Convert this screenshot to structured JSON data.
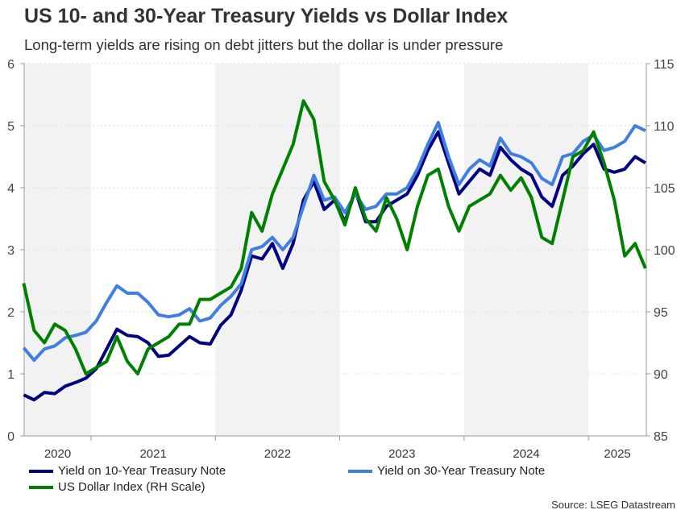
{
  "chart_data": {
    "type": "line",
    "title": "US 10- and 30-Year Treasury Yields vs Dollar Index",
    "subtitle": "Long-term yields are rising on debt jitters but the dollar is under pressure",
    "source": "Source: LSEG Datastream",
    "x_tick_labels": [
      "2020",
      "2021",
      "2022",
      "2023",
      "2024",
      "2025"
    ],
    "shaded_years": [
      "2020",
      "2022",
      "2024"
    ],
    "y_left": {
      "range": [
        0,
        6
      ],
      "ticks": [
        0,
        1,
        2,
        3,
        4,
        5,
        6
      ]
    },
    "y_right": {
      "range": [
        85,
        115
      ],
      "ticks": [
        85,
        90,
        95,
        100,
        105,
        110,
        115
      ]
    },
    "grid": "horizontal dotted",
    "legend_placement": "bottom",
    "x": [
      "2020-06",
      "2020-07",
      "2020-08",
      "2020-09",
      "2020-10",
      "2020-11",
      "2020-12",
      "2021-01",
      "2021-02",
      "2021-03",
      "2021-04",
      "2021-05",
      "2021-06",
      "2021-07",
      "2021-08",
      "2021-09",
      "2021-10",
      "2021-11",
      "2021-12",
      "2022-01",
      "2022-02",
      "2022-03",
      "2022-04",
      "2022-05",
      "2022-06",
      "2022-07",
      "2022-08",
      "2022-09",
      "2022-10",
      "2022-11",
      "2022-12",
      "2023-01",
      "2023-02",
      "2023-03",
      "2023-04",
      "2023-05",
      "2023-06",
      "2023-07",
      "2023-08",
      "2023-09",
      "2023-10",
      "2023-11",
      "2023-12",
      "2024-01",
      "2024-02",
      "2024-03",
      "2024-04",
      "2024-05",
      "2024-06",
      "2024-07",
      "2024-08",
      "2024-09",
      "2024-10",
      "2024-11",
      "2024-12",
      "2025-01",
      "2025-02",
      "2025-03",
      "2025-04",
      "2025-05",
      "2025-06"
    ],
    "series": [
      {
        "name": "Yield on 10-Year Treasury Note",
        "axis": "left",
        "color": "#000080",
        "values": [
          0.66,
          0.58,
          0.7,
          0.68,
          0.8,
          0.86,
          0.93,
          1.08,
          1.4,
          1.72,
          1.62,
          1.6,
          1.5,
          1.28,
          1.3,
          1.45,
          1.6,
          1.5,
          1.48,
          1.78,
          1.95,
          2.35,
          2.9,
          2.85,
          3.1,
          2.7,
          3.1,
          3.8,
          4.1,
          3.65,
          3.8,
          3.45,
          3.95,
          3.45,
          3.45,
          3.7,
          3.8,
          3.9,
          4.2,
          4.6,
          4.9,
          4.4,
          3.9,
          4.1,
          4.3,
          4.2,
          4.65,
          4.45,
          4.3,
          4.2,
          3.85,
          3.7,
          4.2,
          4.35,
          4.55,
          4.7,
          4.3,
          4.25,
          4.3,
          4.5,
          4.4
        ]
      },
      {
        "name": "Yield on 30-Year Treasury Note",
        "axis": "left",
        "color": "#3f7fe0",
        "values": [
          1.42,
          1.22,
          1.4,
          1.45,
          1.58,
          1.62,
          1.67,
          1.85,
          2.15,
          2.42,
          2.3,
          2.3,
          2.15,
          1.95,
          1.92,
          1.95,
          2.05,
          1.85,
          1.9,
          2.1,
          2.25,
          2.45,
          3.0,
          3.05,
          3.2,
          3.0,
          3.2,
          3.7,
          4.2,
          3.8,
          3.85,
          3.6,
          3.9,
          3.65,
          3.7,
          3.9,
          3.9,
          4.0,
          4.3,
          4.7,
          5.05,
          4.5,
          4.05,
          4.3,
          4.45,
          4.35,
          4.8,
          4.55,
          4.5,
          4.4,
          4.15,
          4.05,
          4.5,
          4.55,
          4.75,
          4.85,
          4.6,
          4.65,
          4.75,
          5.0,
          4.92
        ]
      },
      {
        "name": "US Dollar Index (RH Scale)",
        "axis": "right",
        "color": "#008000",
        "values": [
          97.3,
          93.5,
          92.5,
          94.0,
          93.5,
          92.0,
          90.0,
          90.5,
          91.0,
          93.0,
          91.0,
          90.0,
          92.0,
          92.5,
          93.0,
          94.0,
          94.0,
          96.0,
          96.0,
          96.5,
          97.0,
          98.5,
          103.0,
          101.5,
          104.5,
          106.5,
          108.5,
          112.0,
          110.5,
          105.5,
          104.0,
          102.0,
          105.0,
          102.5,
          101.5,
          104.2,
          102.5,
          100.0,
          103.5,
          106.0,
          106.5,
          103.5,
          101.5,
          103.5,
          104.0,
          104.5,
          106.0,
          104.8,
          105.8,
          104.2,
          101.0,
          100.5,
          104.0,
          107.5,
          108.0,
          109.5,
          107.0,
          104.0,
          99.5,
          100.5,
          98.5
        ]
      }
    ]
  }
}
